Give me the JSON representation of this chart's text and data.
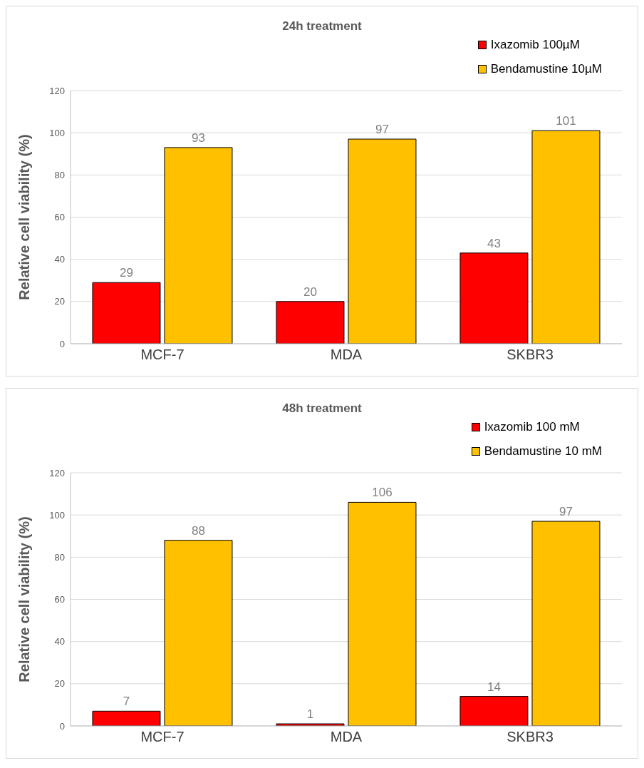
{
  "chart_data": [
    {
      "type": "bar",
      "title": "24h treatment",
      "ylabel": "Relative cell viability (%)",
      "categories": [
        "MCF-7",
        "MDA",
        "SKBR3"
      ],
      "series": [
        {
          "name": "Ixazomib  100µM",
          "color": "#ff0000",
          "values": [
            29,
            20,
            43
          ]
        },
        {
          "name": "Bendamustine  10µM",
          "color": "#ffc000",
          "values": [
            93,
            97,
            101
          ]
        }
      ],
      "ylim": [
        0,
        120
      ],
      "yticks": [
        0,
        20,
        40,
        60,
        80,
        100,
        120
      ],
      "grid": "y",
      "legend": "top right",
      "data_labels": true
    },
    {
      "type": "bar",
      "title": "48h treatment",
      "ylabel": "Relative cell viability (%)",
      "categories": [
        "MCF-7",
        "MDA",
        "SKBR3"
      ],
      "series": [
        {
          "name": "Ixazomib 100 mM",
          "color": "#ff0000",
          "values": [
            7,
            1,
            14
          ]
        },
        {
          "name": "Bendamustine 10 mM",
          "color": "#ffc000",
          "values": [
            88,
            106,
            97
          ]
        }
      ],
      "ylim": [
        0,
        120
      ],
      "yticks": [
        0,
        20,
        40,
        60,
        80,
        100,
        120
      ],
      "grid": "y",
      "legend": "top right",
      "data_labels": true
    }
  ]
}
